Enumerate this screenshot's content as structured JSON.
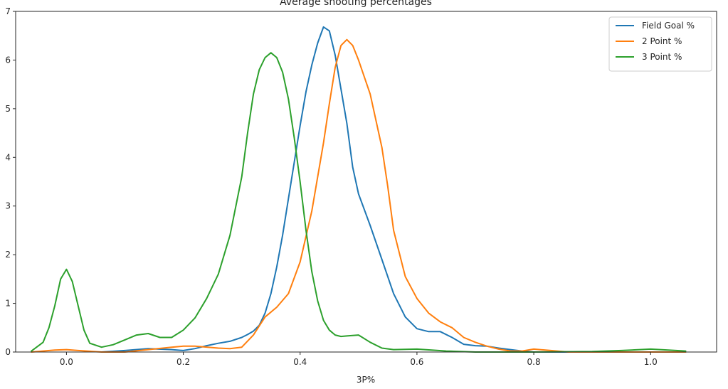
{
  "chart_data": {
    "type": "line",
    "title": "Average shooting percentages",
    "xlabel": "3P%",
    "ylabel": "",
    "xlim": [
      -0.087,
      1.113
    ],
    "ylim": [
      0,
      7
    ],
    "xticks": [
      0.0,
      0.2,
      0.4,
      0.6,
      0.8,
      1.0
    ],
    "xtick_labels": [
      "0.0",
      "0.2",
      "0.4",
      "0.6",
      "0.8",
      "1.0"
    ],
    "yticks": [
      0,
      1,
      2,
      3,
      4,
      5,
      6,
      7
    ],
    "ytick_labels": [
      "0",
      "1",
      "2",
      "3",
      "4",
      "5",
      "6",
      "7"
    ],
    "grid": false,
    "legend_position": "top-right",
    "series": [
      {
        "name": "Field Goal %",
        "color": "#1f77b4",
        "x": [
          0.06,
          0.1,
          0.14,
          0.18,
          0.2,
          0.22,
          0.24,
          0.26,
          0.28,
          0.3,
          0.31,
          0.32,
          0.33,
          0.34,
          0.35,
          0.36,
          0.37,
          0.38,
          0.39,
          0.4,
          0.41,
          0.42,
          0.43,
          0.44,
          0.45,
          0.46,
          0.47,
          0.48,
          0.49,
          0.5,
          0.52,
          0.54,
          0.56,
          0.58,
          0.6,
          0.62,
          0.64,
          0.66,
          0.68,
          0.7,
          0.72,
          0.74,
          0.76,
          0.78,
          0.8,
          0.85,
          0.9,
          0.95,
          1.0,
          1.06
        ],
        "y": [
          0.0,
          0.03,
          0.07,
          0.05,
          0.03,
          0.07,
          0.13,
          0.18,
          0.22,
          0.3,
          0.36,
          0.43,
          0.55,
          0.8,
          1.2,
          1.75,
          2.4,
          3.15,
          3.9,
          4.65,
          5.35,
          5.9,
          6.35,
          6.68,
          6.6,
          6.1,
          5.4,
          4.7,
          3.8,
          3.25,
          2.6,
          1.9,
          1.2,
          0.72,
          0.48,
          0.42,
          0.42,
          0.3,
          0.16,
          0.13,
          0.12,
          0.08,
          0.05,
          0.02,
          0.0,
          0.0,
          0.0,
          0.0,
          0.0,
          0.0
        ]
      },
      {
        "name": "2 Point %",
        "color": "#ff7f0e",
        "x": [
          -0.06,
          -0.02,
          0.0,
          0.02,
          0.06,
          0.1,
          0.14,
          0.18,
          0.2,
          0.22,
          0.26,
          0.28,
          0.3,
          0.32,
          0.34,
          0.36,
          0.38,
          0.4,
          0.42,
          0.44,
          0.45,
          0.46,
          0.47,
          0.48,
          0.49,
          0.5,
          0.52,
          0.54,
          0.55,
          0.56,
          0.58,
          0.6,
          0.62,
          0.64,
          0.66,
          0.68,
          0.7,
          0.72,
          0.74,
          0.76,
          0.78,
          0.8,
          0.82,
          0.86,
          0.9,
          0.95,
          1.0,
          1.06
        ],
        "y": [
          0.0,
          0.04,
          0.05,
          0.03,
          0.0,
          0.0,
          0.05,
          0.1,
          0.12,
          0.12,
          0.08,
          0.07,
          0.1,
          0.35,
          0.72,
          0.92,
          1.2,
          1.85,
          2.9,
          4.3,
          5.1,
          5.85,
          6.3,
          6.42,
          6.3,
          6.0,
          5.3,
          4.2,
          3.4,
          2.5,
          1.55,
          1.1,
          0.8,
          0.62,
          0.5,
          0.3,
          0.2,
          0.12,
          0.06,
          0.02,
          0.02,
          0.06,
          0.04,
          0.0,
          0.0,
          0.0,
          0.0,
          0.0
        ]
      },
      {
        "name": "3 Point %",
        "color": "#2ca02c",
        "x": [
          -0.06,
          -0.04,
          -0.03,
          -0.02,
          -0.01,
          0.0,
          0.01,
          0.02,
          0.03,
          0.04,
          0.06,
          0.08,
          0.1,
          0.12,
          0.14,
          0.16,
          0.18,
          0.2,
          0.22,
          0.24,
          0.26,
          0.28,
          0.3,
          0.31,
          0.32,
          0.33,
          0.34,
          0.35,
          0.36,
          0.37,
          0.38,
          0.39,
          0.4,
          0.41,
          0.42,
          0.43,
          0.44,
          0.45,
          0.46,
          0.47,
          0.48,
          0.5,
          0.52,
          0.54,
          0.56,
          0.6,
          0.65,
          0.7,
          0.8,
          0.9,
          0.95,
          1.0,
          1.03,
          1.06
        ],
        "y": [
          0.02,
          0.2,
          0.5,
          0.95,
          1.5,
          1.7,
          1.45,
          0.95,
          0.45,
          0.18,
          0.1,
          0.15,
          0.25,
          0.35,
          0.38,
          0.3,
          0.3,
          0.45,
          0.7,
          1.1,
          1.6,
          2.4,
          3.6,
          4.5,
          5.3,
          5.8,
          6.05,
          6.15,
          6.05,
          5.75,
          5.2,
          4.4,
          3.5,
          2.5,
          1.65,
          1.05,
          0.65,
          0.45,
          0.35,
          0.32,
          0.33,
          0.35,
          0.2,
          0.08,
          0.05,
          0.06,
          0.02,
          0.0,
          0.0,
          0.01,
          0.03,
          0.06,
          0.04,
          0.02
        ]
      }
    ]
  }
}
